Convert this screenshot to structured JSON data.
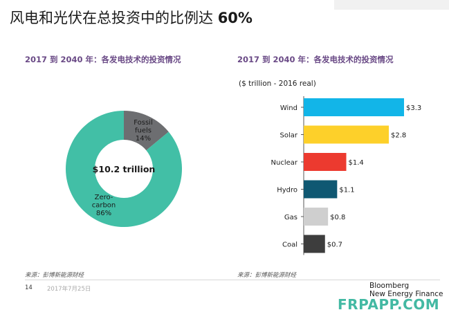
{
  "page": {
    "title_main": "风电和光伏在总投资中的比例达",
    "title_pct": "60%",
    "page_number": "14",
    "date": "2017年7月25日",
    "brand_line1": "Bloomberg",
    "brand_line2": "New Energy Finance",
    "watermark": "FRPAPP.COM"
  },
  "colors": {
    "donut_green": "#42bfa6",
    "donut_gray": "#6d6e71",
    "bar_wind": "#12b5e8",
    "bar_solar": "#fdd02a",
    "bar_nuclear": "#ec3a2f",
    "bar_hydro": "#0f5872",
    "bar_gas": "#cfcfcf",
    "bar_coal": "#3d3d3d",
    "heading_purple": "#6a4a86"
  },
  "chart_data": [
    {
      "type": "pie",
      "title": "2017 到 2040 年：各发电技术的投资情况",
      "center_label": "$10.2 trillion",
      "slices": [
        {
          "name": "Zero-carbon",
          "value": 86,
          "label_lines": [
            "Zero-",
            "carbon",
            "86%"
          ]
        },
        {
          "name": "Fossil fuels",
          "value": 14,
          "label_lines": [
            "Fossil",
            "fuels",
            "14%"
          ]
        }
      ],
      "source": "来源：彭博新能源财经"
    },
    {
      "type": "bar",
      "orientation": "horizontal",
      "title": "2017 到 2040 年：各发电技术的投资情况",
      "unit_label": "($ trillion - 2016 real)",
      "categories": [
        "Wind",
        "Solar",
        "Nuclear",
        "Hydro",
        "Gas",
        "Coal"
      ],
      "values": [
        3.3,
        2.8,
        1.4,
        1.1,
        0.8,
        0.7
      ],
      "value_labels": [
        "$3.3",
        "$2.8",
        "$1.4",
        "$1.1",
        "$0.8",
        "$0.7"
      ],
      "xlim": [
        0,
        3.3
      ],
      "source": "来源：彭博新能源财经"
    }
  ]
}
